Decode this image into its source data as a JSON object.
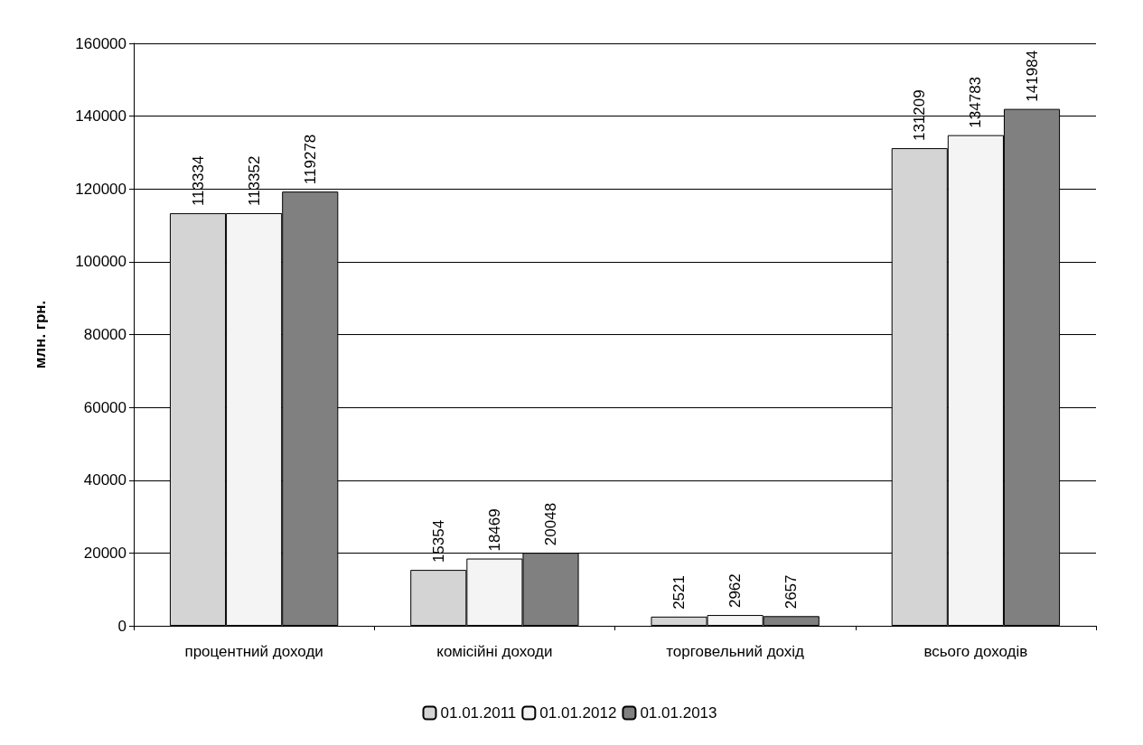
{
  "chart_data": {
    "type": "bar",
    "ylabel": "млн. грн.",
    "categories": [
      "процентний доходи",
      "комісійні доходи",
      "торговельний дохід",
      "всього доходів"
    ],
    "series": [
      {
        "name": "01.01.2011",
        "color": "#d4d4d4",
        "values": [
          113334,
          15354,
          2521,
          131209
        ]
      },
      {
        "name": "01.01.2012",
        "color": "#f4f4f4",
        "values": [
          113352,
          18469,
          2962,
          134783
        ]
      },
      {
        "name": "01.01.2013",
        "color": "#808080",
        "values": [
          119278,
          20048,
          2657,
          141984
        ]
      }
    ],
    "ylim": [
      0,
      160000
    ],
    "yticks": [
      0,
      20000,
      40000,
      60000,
      80000,
      100000,
      120000,
      140000,
      160000
    ],
    "grid": "y",
    "legend": "bottom",
    "data_labels": true
  }
}
